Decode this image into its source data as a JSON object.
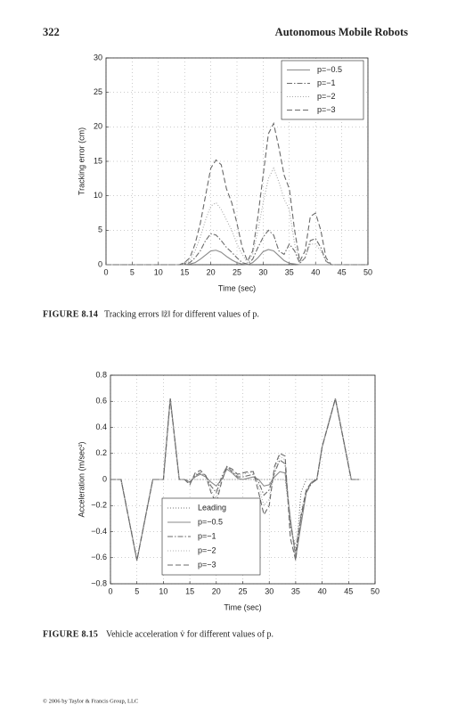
{
  "page": {
    "header": {
      "page_number": "322",
      "title": "Autonomous Mobile Robots"
    },
    "footer": "© 2006 by Taylor & Francis Group, LLC"
  },
  "chart_data": [
    {
      "type": "line",
      "caption_label": "FIGURE 8.14",
      "caption": "Tracking errors ‖z̃‖ for different values of p.",
      "x_label": "Time (sec)",
      "y_label": "Tracking error (cm)",
      "xlim": [
        0,
        50
      ],
      "xticks": [
        0,
        5,
        10,
        15,
        20,
        25,
        30,
        35,
        40,
        45,
        50
      ],
      "ylim": [
        0,
        30
      ],
      "yticks": [
        0,
        5,
        10,
        15,
        20,
        25,
        30
      ],
      "grid": true,
      "legend": "upper right",
      "x": [
        0,
        14,
        15,
        16,
        17,
        18,
        19,
        20,
        21,
        22,
        23,
        24,
        25,
        26,
        27,
        28,
        29,
        30,
        31,
        32,
        33,
        34,
        35,
        36,
        37,
        38,
        39,
        40,
        41,
        42,
        43,
        50
      ],
      "series": [
        {
          "name": "p=−0.5",
          "color": "#8a8a8a",
          "style": "solid",
          "values": [
            0,
            0,
            0,
            0.1,
            0.3,
            0.8,
            1.4,
            2,
            2.1,
            1.8,
            1.2,
            0.7,
            0.3,
            0.1,
            0,
            0.3,
            1,
            1.9,
            2.2,
            2,
            1.3,
            0.6,
            0.2,
            0.1,
            0,
            0,
            0,
            0,
            0,
            0,
            0,
            0
          ]
        },
        {
          "name": "p=−1",
          "color": "#6a6a6a",
          "style": "dashdot",
          "values": [
            0,
            0,
            0.1,
            0.3,
            1,
            2,
            3.5,
            4.5,
            4.3,
            3.5,
            2.5,
            1.8,
            1,
            0.3,
            0.1,
            0.8,
            2.5,
            4,
            5,
            4.3,
            2,
            1.5,
            3,
            2,
            0.2,
            1,
            3.5,
            3.8,
            2.5,
            0.5,
            0,
            0
          ]
        },
        {
          "name": "p=−2",
          "color": "#a8a8a8",
          "style": "dotted",
          "values": [
            0,
            0,
            0.2,
            0.6,
            2,
            4,
            6.5,
            8.5,
            9,
            8,
            6.5,
            5,
            3,
            1.5,
            0.3,
            1.5,
            5,
            9,
            12.5,
            14,
            12,
            9.5,
            8,
            3,
            0.3,
            1,
            3,
            3,
            2,
            0.5,
            0,
            0
          ]
        },
        {
          "name": "p=−3",
          "color": "#6a6a6a",
          "style": "dashed",
          "values": [
            0,
            0,
            0.3,
            1,
            3,
            6,
            10,
            14,
            15.2,
            14.5,
            11,
            9,
            6,
            2.5,
            0.5,
            2,
            7,
            13,
            19,
            20.5,
            17,
            13,
            11,
            5,
            0.5,
            2,
            7,
            7.5,
            5,
            1,
            0,
            0
          ]
        }
      ]
    },
    {
      "type": "line",
      "caption_label": "FIGURE 8.15",
      "caption": "Vehicle acceleration v̇ for different values of p.",
      "x_label": "Time (sec)",
      "y_label": "Acceleration (m/sec²)",
      "xlim": [
        0,
        50
      ],
      "xticks": [
        0,
        5,
        10,
        15,
        20,
        25,
        30,
        35,
        40,
        45,
        50
      ],
      "ylim": [
        -0.8,
        0.8
      ],
      "yticks": [
        {
          "value": -0.8,
          "label": "−0.8"
        },
        {
          "value": -0.6,
          "label": "−0.6"
        },
        {
          "value": -0.4,
          "label": "−0.4"
        },
        {
          "value": -0.2,
          "label": "−0.2"
        },
        0,
        0.2,
        0.4,
        0.6,
        0.8
      ],
      "grid": true,
      "legend": "lower left",
      "x": [
        0,
        2,
        5,
        8,
        10,
        11.3,
        13,
        14,
        15,
        16,
        17,
        18,
        19,
        20,
        21,
        22,
        23,
        24,
        25,
        26,
        27,
        28,
        29,
        30,
        31,
        32,
        33,
        34,
        35,
        36,
        37,
        38,
        39,
        40,
        42.5,
        45.5,
        47
      ],
      "series": [
        {
          "name": "Leading",
          "color": "#777777",
          "style": "dotted",
          "values": [
            0,
            0,
            -0.62,
            0,
            0,
            0.62,
            0,
            0,
            0,
            0,
            0,
            0,
            0,
            0,
            0,
            0,
            0,
            0,
            0,
            0,
            0,
            0,
            0,
            0,
            0,
            0,
            0,
            -0.3,
            -0.62,
            -0.1,
            0,
            0,
            0,
            0.25,
            0.62,
            0,
            0
          ]
        },
        {
          "name": "p=−0.5",
          "color": "#8a8a8a",
          "style": "solid",
          "values": [
            0,
            0,
            -0.62,
            0,
            0,
            0.62,
            0,
            0,
            -0.02,
            0.02,
            0.04,
            0.02,
            -0.02,
            -0.05,
            0,
            0.08,
            0.05,
            0.01,
            0,
            0.01,
            0.02,
            0,
            -0.05,
            -0.04,
            0.02,
            0.06,
            0.05,
            -0.3,
            -0.6,
            -0.35,
            -0.1,
            -0.02,
            0,
            0.25,
            0.62,
            0,
            0
          ]
        },
        {
          "name": "p=−1",
          "color": "#6a6a6a",
          "style": "dashdot",
          "values": [
            0,
            0,
            -0.62,
            0,
            0,
            0.62,
            0,
            0,
            -0.02,
            0.03,
            0.05,
            0.03,
            -0.05,
            -0.1,
            0.02,
            0.1,
            0.06,
            0.02,
            0.02,
            0.03,
            0.04,
            -0.02,
            -0.12,
            -0.08,
            0.05,
            0.15,
            0.12,
            -0.35,
            -0.55,
            -0.3,
            -0.1,
            -0.03,
            0,
            0.25,
            0.62,
            0,
            0
          ]
        },
        {
          "name": "p=−2",
          "color": "#b0b0b0",
          "style": "dotted",
          "values": [
            0,
            0,
            -0.62,
            0,
            0,
            0.62,
            0,
            0,
            -0.03,
            0.04,
            0.06,
            0.03,
            -0.08,
            -0.15,
            0,
            0.1,
            0.07,
            0.03,
            0.04,
            0.05,
            0.06,
            -0.05,
            -0.2,
            -0.15,
            0.07,
            0.18,
            0.15,
            -0.38,
            -0.5,
            -0.25,
            -0.08,
            -0.02,
            0,
            0.25,
            0.62,
            0,
            0
          ]
        },
        {
          "name": "p=−3",
          "color": "#6a6a6a",
          "style": "dashed",
          "values": [
            0,
            0,
            -0.62,
            0,
            0,
            0.62,
            0,
            0,
            -0.04,
            0.05,
            0.07,
            0.03,
            -0.1,
            -0.18,
            -0.02,
            0.1,
            0.08,
            0.04,
            0.05,
            0.06,
            0.06,
            -0.1,
            -0.27,
            -0.2,
            0.1,
            0.2,
            0.18,
            -0.45,
            -0.62,
            -0.28,
            -0.08,
            -0.02,
            0,
            0.25,
            0.62,
            0,
            0
          ]
        }
      ]
    }
  ]
}
